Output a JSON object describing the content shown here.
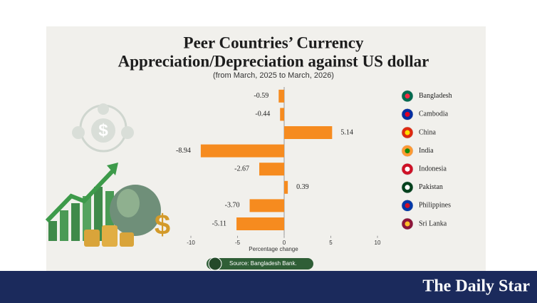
{
  "chart_data": {
    "type": "hbar",
    "title": [
      "Peer Countries’ Currency",
      "Appreciation/Depreciation against US dollar"
    ],
    "subtitle": "(from March, 2025 to March, 2026)",
    "categories": [
      "Bangladesh",
      "Cambodia",
      "China",
      "India",
      "Indonesia",
      "Pakistan",
      "Philippines",
      "Sri Lanka"
    ],
    "values": [
      -0.59,
      -0.44,
      5.14,
      -8.94,
      -2.67,
      0.39,
      -3.7,
      -5.11
    ],
    "value_labels": [
      "-0.59",
      "-0.44",
      "5.14",
      "-8.94",
      "-2.67",
      "0.39",
      "-3.70",
      "-5.11"
    ],
    "color": "#f68b1f",
    "xlabel": "Percentage change",
    "xlim": [
      -10,
      10
    ],
    "xticks": [
      -10,
      -5,
      0,
      5,
      10
    ],
    "source": "Source: Bangladesh Bank."
  },
  "brand": "The Daily Star"
}
